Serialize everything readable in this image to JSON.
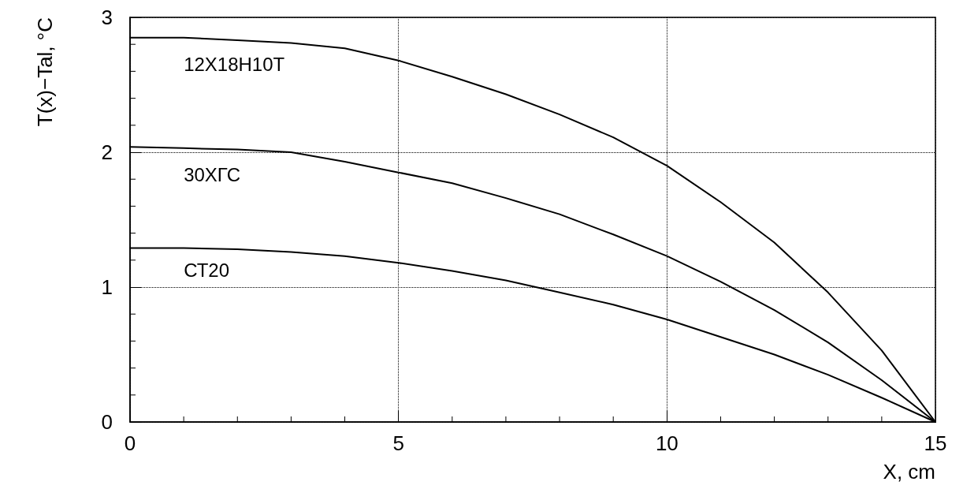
{
  "chart_data": {
    "type": "line",
    "xlabel": "X, cm",
    "ylabel": "T(x)−Tal, °C",
    "x": [
      0,
      1,
      2,
      3,
      4,
      5,
      6,
      7,
      8,
      9,
      10,
      11,
      12,
      13,
      14,
      15
    ],
    "series": [
      {
        "name": "12Х18Н10Т",
        "color": "#000000",
        "values": [
          2.85,
          2.85,
          2.83,
          2.81,
          2.77,
          2.68,
          2.56,
          2.43,
          2.28,
          2.11,
          1.9,
          1.63,
          1.33,
          0.96,
          0.53,
          0
        ]
      },
      {
        "name": "30ХГС",
        "color": "#000000",
        "values": [
          2.04,
          2.03,
          2.02,
          2.0,
          1.93,
          1.85,
          1.77,
          1.66,
          1.54,
          1.39,
          1.23,
          1.04,
          0.83,
          0.59,
          0.31,
          0
        ]
      },
      {
        "name": "СТ20",
        "color": "#000000",
        "values": [
          1.29,
          1.29,
          1.28,
          1.26,
          1.23,
          1.18,
          1.12,
          1.05,
          0.96,
          0.87,
          0.76,
          0.63,
          0.5,
          0.35,
          0.18,
          0
        ]
      }
    ],
    "xlim": [
      0,
      15
    ],
    "xticks": [
      0,
      5,
      10,
      15
    ],
    "ylim": [
      0,
      3
    ],
    "yticks": [
      0,
      1,
      2,
      3
    ],
    "grid": true,
    "legend": false,
    "marker": "none",
    "line_style": "solid"
  }
}
